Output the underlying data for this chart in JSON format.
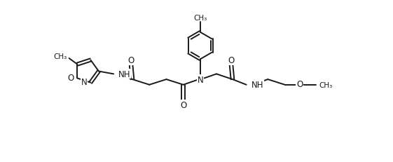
{
  "background_color": "#ffffff",
  "line_color": "#1a1a1a",
  "line_width": 1.4,
  "font_size": 8.5,
  "figsize": [
    5.61,
    2.32
  ],
  "dpi": 100,
  "xlim": [
    0,
    10.5
  ],
  "ylim": [
    -1.8,
    4.2
  ]
}
